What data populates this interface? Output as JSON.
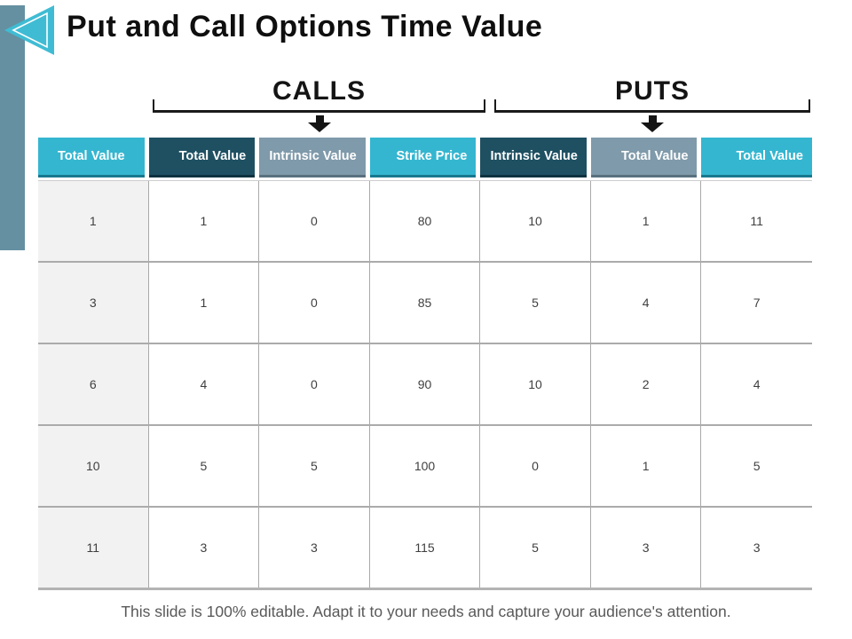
{
  "slide": {
    "title": "Put and Call Options Time Value",
    "footer": "This slide is 100% editable. Adapt it to your needs and capture your audience's attention."
  },
  "groups": {
    "calls_label": "CALLS",
    "puts_label": "PUTS"
  },
  "table": {
    "headers": [
      {
        "label": "Total Value",
        "variant": "cyan"
      },
      {
        "label": "Total Value",
        "variant": "dark"
      },
      {
        "label": "Intrinsic Value",
        "variant": "gray"
      },
      {
        "label": "Strike Price",
        "variant": "cyan"
      },
      {
        "label": "Intrinsic Value",
        "variant": "dark"
      },
      {
        "label": "Total Value",
        "variant": "gray"
      },
      {
        "label": "Total Value",
        "variant": "cyan"
      }
    ],
    "rows": [
      [
        "1",
        "1",
        "0",
        "80",
        "10",
        "1",
        "11"
      ],
      [
        "3",
        "1",
        "0",
        "85",
        "5",
        "4",
        "7"
      ],
      [
        "6",
        "4",
        "0",
        "90",
        "10",
        "2",
        "4"
      ],
      [
        "10",
        "5",
        "5",
        "100",
        "0",
        "1",
        "5"
      ],
      [
        "11",
        "3",
        "3",
        "115",
        "5",
        "3",
        "3"
      ]
    ]
  },
  "colors": {
    "accent_cyan": "#35b6d0",
    "accent_dark_teal": "#1e5062",
    "accent_gray_blue": "#7f9aaa",
    "side_bar": "#6590a1",
    "first_column_bg": "#f2f2f2",
    "bracket_black": "#141414",
    "footer_gray": "#595959"
  },
  "icons": {
    "logo": "left-triangle-icon",
    "calls_arrow": "down-arrow-icon",
    "puts_arrow": "down-arrow-icon"
  }
}
